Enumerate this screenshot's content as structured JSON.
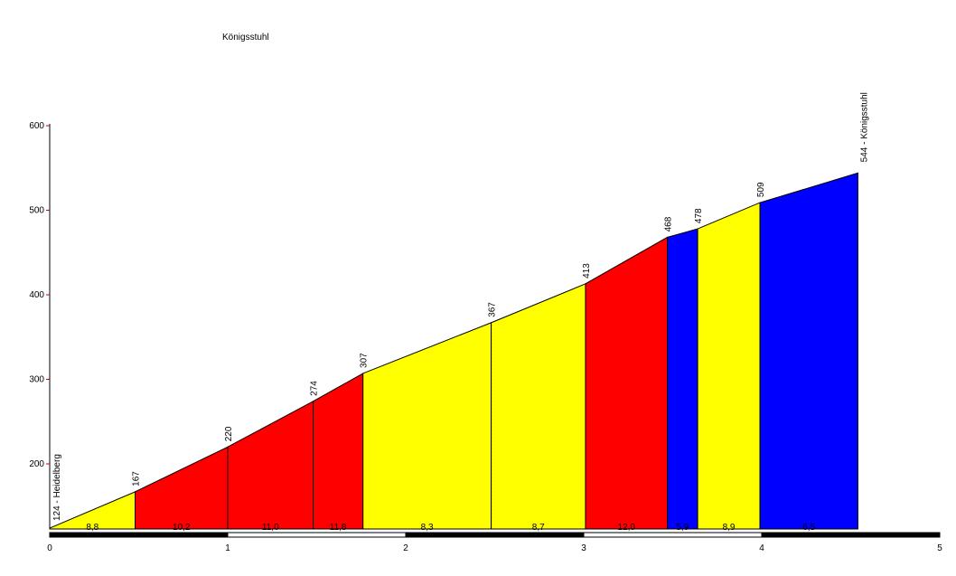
{
  "chart_data": {
    "type": "area",
    "title": "Königsstuhl",
    "xlabel": "",
    "ylabel": "",
    "xlim": [
      0,
      5
    ],
    "ylim": [
      124,
      600
    ],
    "x_ticks": [
      "0",
      "1",
      "2",
      "3",
      "4",
      "5"
    ],
    "y_ticks": [
      "200",
      "300",
      "400",
      "500",
      "600"
    ],
    "grid": false,
    "start_label": "124 - Heidelberg",
    "end_label": "544 - Königsstuhl",
    "points": [
      {
        "x": 0.0,
        "y": 124,
        "label": ""
      },
      {
        "x": 0.48,
        "y": 167,
        "label": "167"
      },
      {
        "x": 1.0,
        "y": 220,
        "label": "220"
      },
      {
        "x": 1.48,
        "y": 274,
        "label": "274"
      },
      {
        "x": 1.76,
        "y": 307,
        "label": "307"
      },
      {
        "x": 2.48,
        "y": 367,
        "label": "367"
      },
      {
        "x": 3.01,
        "y": 413,
        "label": "413"
      },
      {
        "x": 3.47,
        "y": 468,
        "label": "468"
      },
      {
        "x": 3.64,
        "y": 478,
        "label": "478"
      },
      {
        "x": 3.99,
        "y": 509,
        "label": "509"
      },
      {
        "x": 4.54,
        "y": 544,
        "label": ""
      }
    ],
    "segments": [
      {
        "from": 0.0,
        "to": 0.48,
        "gradient": "8,8",
        "color": "#ffff00"
      },
      {
        "from": 0.48,
        "to": 1.0,
        "gradient": "10,2",
        "color": "#ff0000"
      },
      {
        "from": 1.0,
        "to": 1.48,
        "gradient": "11,0",
        "color": "#ff0000"
      },
      {
        "from": 1.48,
        "to": 1.76,
        "gradient": "11,8",
        "color": "#ff0000"
      },
      {
        "from": 1.76,
        "to": 2.48,
        "gradient": "8,3",
        "color": "#ffff00"
      },
      {
        "from": 2.48,
        "to": 3.01,
        "gradient": "8,7",
        "color": "#ffff00"
      },
      {
        "from": 3.01,
        "to": 3.47,
        "gradient": "12,0",
        "color": "#ff0000"
      },
      {
        "from": 3.47,
        "to": 3.64,
        "gradient": "5,9",
        "color": "#0000ff"
      },
      {
        "from": 3.64,
        "to": 3.99,
        "gradient": "8,9",
        "color": "#ffff00"
      },
      {
        "from": 3.99,
        "to": 4.54,
        "gradient": "6,5",
        "color": "#0000ff"
      }
    ],
    "dashed_at": [
      1.0,
      1.48,
      2.48
    ]
  }
}
